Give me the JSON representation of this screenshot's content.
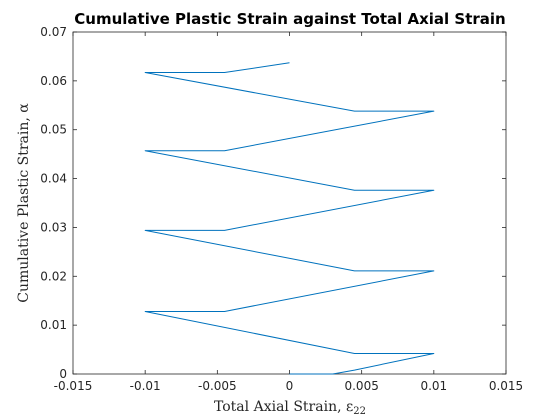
{
  "chart_data": {
    "type": "line",
    "title": "Cumulative Plastic Strain against Total Axial Strain",
    "xlabel": "Total Axial Strain, ε",
    "xlabel_sub": "22",
    "ylabel": "Cumulative Plastic Strain, α",
    "xlim": [
      -0.015,
      0.015
    ],
    "ylim": [
      0,
      0.07
    ],
    "xticks": [
      "-0.015",
      "-0.01",
      "-0.005",
      "0",
      "0.005",
      "0.01",
      "0.015"
    ],
    "yticks": [
      "0",
      "0.01",
      "0.02",
      "0.03",
      "0.04",
      "0.05",
      "0.06",
      "0.07"
    ],
    "grid": false,
    "line_color": "#0072bd",
    "series": [
      {
        "x": [
          0,
          0.003,
          0.0045,
          0.01,
          0.0045,
          -0.01,
          -0.0045,
          0.01,
          0.0045,
          -0.01,
          -0.0045,
          0.01,
          0.0045,
          -0.01,
          -0.0045,
          0.01,
          0.0045,
          -0.01,
          -0.0045,
          0.0
        ],
        "y": [
          0,
          0,
          0.0008,
          0.0042,
          0.0042,
          0.0128,
          0.0128,
          0.0211,
          0.0211,
          0.0294,
          0.0294,
          0.0376,
          0.0376,
          0.0457,
          0.0457,
          0.0538,
          0.0538,
          0.0617,
          0.0617,
          0.0637
        ]
      }
    ]
  }
}
